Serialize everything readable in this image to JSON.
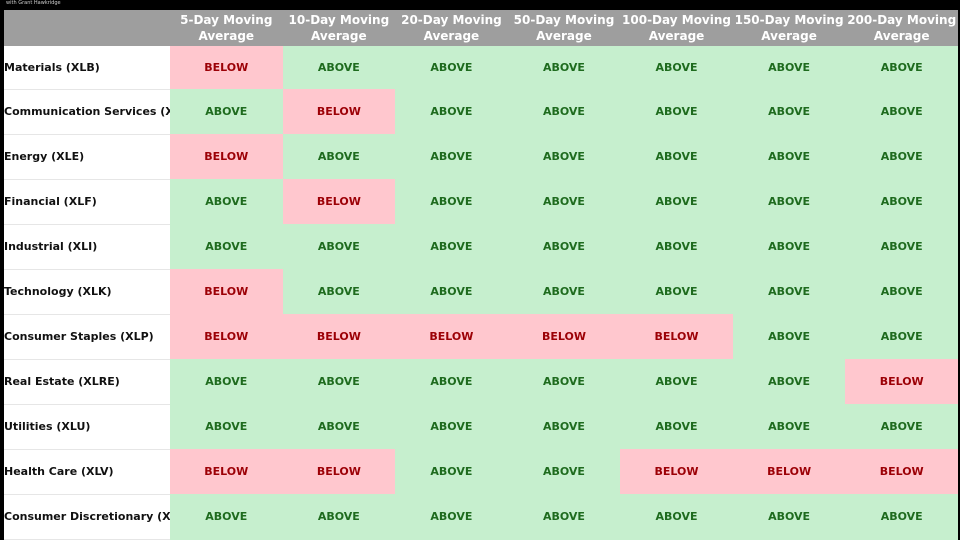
{
  "brand_text": "with Grant Hawkridge",
  "colors": {
    "header_bg": "#9e9e9e",
    "above_bg": "#c6efce",
    "above_text": "#1e6b1e",
    "below_bg": "#ffc7ce",
    "below_text": "#9c0006"
  },
  "table": {
    "columns": [
      {
        "line1": "5-Day Moving",
        "line2": "Average"
      },
      {
        "line1": "10-Day Moving",
        "line2": "Average"
      },
      {
        "line1": "20-Day Moving",
        "line2": "Average"
      },
      {
        "line1": "50-Day Moving",
        "line2": "Average"
      },
      {
        "line1": "100-Day Moving",
        "line2": "Average"
      },
      {
        "line1": "150-Day Moving",
        "line2": "Average"
      },
      {
        "line1": "200-Day Moving",
        "line2": "Average"
      }
    ],
    "rows": [
      {
        "label": "Materials (XLB)",
        "values": [
          "BELOW",
          "ABOVE",
          "ABOVE",
          "ABOVE",
          "ABOVE",
          "ABOVE",
          "ABOVE"
        ]
      },
      {
        "label": "Communication Services (XLC)",
        "values": [
          "ABOVE",
          "BELOW",
          "ABOVE",
          "ABOVE",
          "ABOVE",
          "ABOVE",
          "ABOVE"
        ]
      },
      {
        "label": "Energy (XLE)",
        "values": [
          "BELOW",
          "ABOVE",
          "ABOVE",
          "ABOVE",
          "ABOVE",
          "ABOVE",
          "ABOVE"
        ]
      },
      {
        "label": "Financial (XLF)",
        "values": [
          "ABOVE",
          "BELOW",
          "ABOVE",
          "ABOVE",
          "ABOVE",
          "ABOVE",
          "ABOVE"
        ]
      },
      {
        "label": "Industrial (XLI)",
        "values": [
          "ABOVE",
          "ABOVE",
          "ABOVE",
          "ABOVE",
          "ABOVE",
          "ABOVE",
          "ABOVE"
        ]
      },
      {
        "label": "Technology (XLK)",
        "values": [
          "BELOW",
          "ABOVE",
          "ABOVE",
          "ABOVE",
          "ABOVE",
          "ABOVE",
          "ABOVE"
        ]
      },
      {
        "label": "Consumer Staples (XLP)",
        "values": [
          "BELOW",
          "BELOW",
          "BELOW",
          "BELOW",
          "BELOW",
          "ABOVE",
          "ABOVE"
        ]
      },
      {
        "label": "Real Estate (XLRE)",
        "values": [
          "ABOVE",
          "ABOVE",
          "ABOVE",
          "ABOVE",
          "ABOVE",
          "ABOVE",
          "BELOW"
        ]
      },
      {
        "label": "Utilities (XLU)",
        "values": [
          "ABOVE",
          "ABOVE",
          "ABOVE",
          "ABOVE",
          "ABOVE",
          "ABOVE",
          "ABOVE"
        ]
      },
      {
        "label": "Health Care (XLV)",
        "values": [
          "BELOW",
          "BELOW",
          "ABOVE",
          "ABOVE",
          "BELOW",
          "BELOW",
          "BELOW"
        ]
      },
      {
        "label": "Consumer Discretionary (XLY)",
        "values": [
          "ABOVE",
          "ABOVE",
          "ABOVE",
          "ABOVE",
          "ABOVE",
          "ABOVE",
          "ABOVE"
        ]
      }
    ]
  }
}
